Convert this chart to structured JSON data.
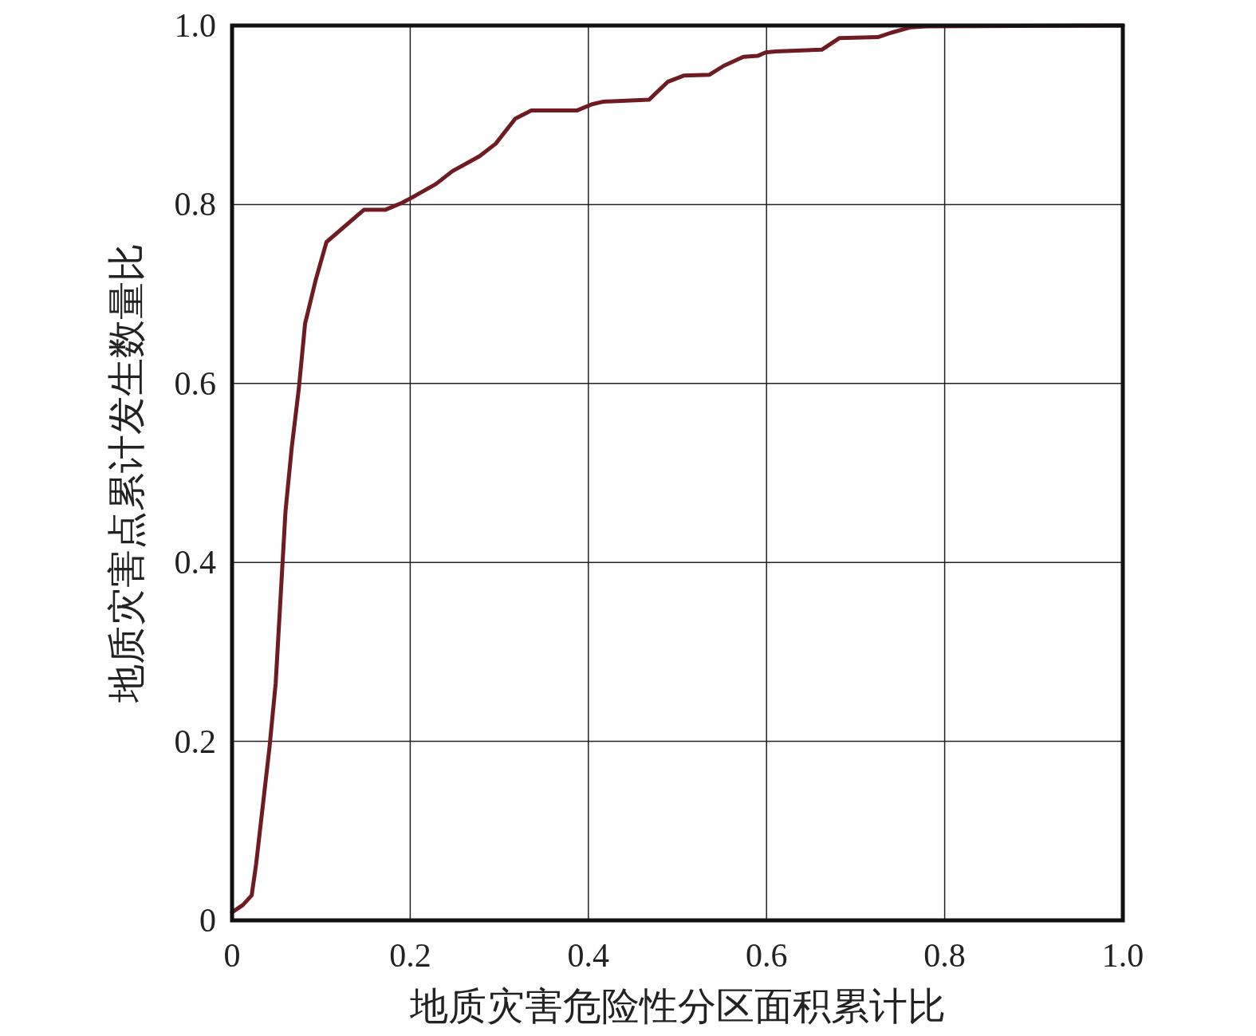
{
  "chart_data": {
    "type": "line",
    "xlabel": "地质灾害危险性分区面积累计比",
    "ylabel": "地质灾害点累计发生数量比",
    "color": "#6e1c22",
    "x": [
      0,
      0.012,
      0.022,
      0.027,
      0.042,
      0.049,
      0.06,
      0.067,
      0.075,
      0.082,
      0.094,
      0.106,
      0.148,
      0.172,
      0.191,
      0.206,
      0.229,
      0.247,
      0.278,
      0.296,
      0.318,
      0.336,
      0.387,
      0.404,
      0.417,
      0.468,
      0.489,
      0.507,
      0.536,
      0.552,
      0.574,
      0.59,
      0.599,
      0.61,
      0.662,
      0.682,
      0.725,
      0.74,
      0.762,
      0.78,
      1
    ],
    "values": [
      0.009,
      0.017,
      0.028,
      0.063,
      0.193,
      0.265,
      0.457,
      0.528,
      0.595,
      0.667,
      0.716,
      0.758,
      0.794,
      0.794,
      0.802,
      0.81,
      0.823,
      0.837,
      0.854,
      0.868,
      0.896,
      0.905,
      0.905,
      0.912,
      0.915,
      0.917,
      0.937,
      0.944,
      0.945,
      0.955,
      0.965,
      0.966,
      0.97,
      0.971,
      0.973,
      0.986,
      0.987,
      0.992,
      0.998,
      0.999,
      1
    ],
    "xlim": [
      0,
      1
    ],
    "ylim": [
      0,
      1
    ],
    "xticks": [
      {
        "value": 0,
        "label": "0"
      },
      0.2,
      0.4,
      0.6,
      0.8,
      {
        "value": 1,
        "label": "1.0"
      }
    ],
    "yticks": [
      {
        "value": 0,
        "label": "0"
      },
      0.2,
      0.4,
      0.6,
      0.8,
      {
        "value": 1,
        "label": "1.0"
      }
    ],
    "grid": true
  }
}
